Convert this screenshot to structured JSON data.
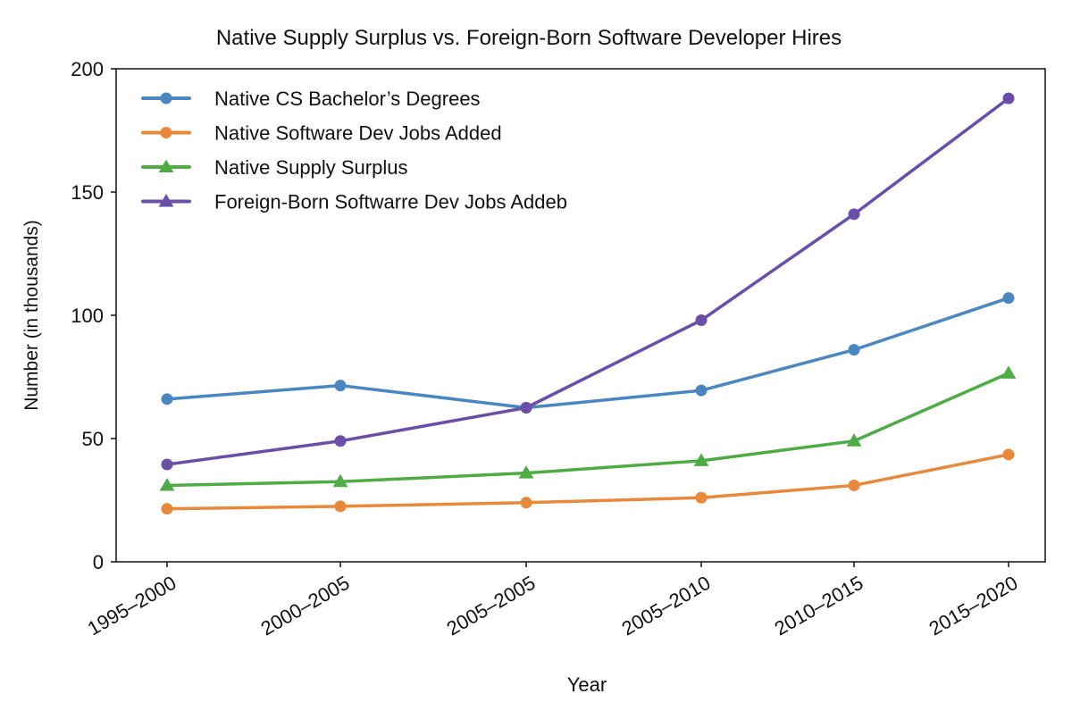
{
  "chart_data": {
    "type": "line",
    "title": "Native Supply Surplus vs. Foreign-Born Software Developer Hires",
    "xlabel": "Year",
    "ylabel": "Number (in thousands)",
    "ylim": [
      0,
      200
    ],
    "yticks": [
      0,
      50,
      100,
      150,
      200
    ],
    "grid": false,
    "legend_position": "top-left",
    "categories": [
      "1995–2000",
      "2000–2005",
      "2005–2005",
      "2005–2010",
      "2010–2015",
      "2015–2020"
    ],
    "series": [
      {
        "name": "Native CS Bachelor’s Degrees",
        "color": "#4a86c0",
        "marker": "circle",
        "values": [
          66,
          71.5,
          62.5,
          69.5,
          86,
          107
        ]
      },
      {
        "name": "Native Software Dev Jobs Added",
        "color": "#e8883a",
        "marker": "circle",
        "values": [
          21.5,
          22.5,
          24,
          26,
          31,
          43.5
        ]
      },
      {
        "name": "Native Supply Surplus",
        "color": "#4fab44",
        "marker": "triangle",
        "values": [
          31,
          32.5,
          36,
          41,
          49,
          76.5
        ]
      },
      {
        "name": "Foreign-Born Softwarre Dev Jobs Addeb",
        "color": "#6a4fa8",
        "marker": "circle",
        "legend_marker": "triangle",
        "values": [
          39.5,
          49,
          62.5,
          98,
          141,
          188
        ]
      }
    ]
  }
}
